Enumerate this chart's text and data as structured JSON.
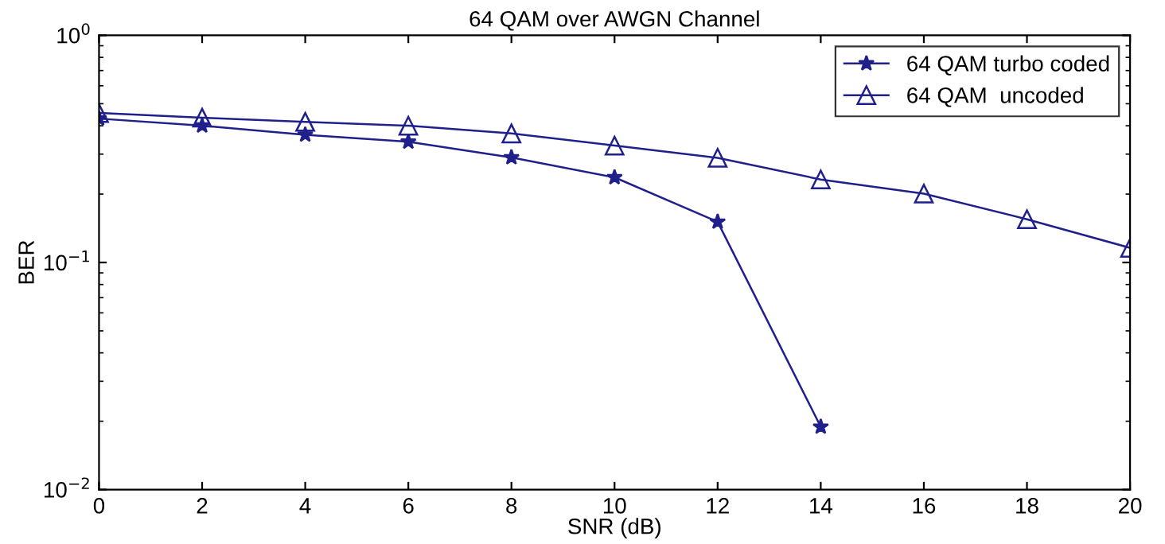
{
  "chart_data": {
    "type": "line",
    "title": "64 QAM over AWGN Channel",
    "xlabel": "SNR (dB)",
    "ylabel": "BER",
    "log": "y",
    "legend": "top right",
    "grid": false,
    "line_style": "solid",
    "xlim": [
      0,
      20
    ],
    "xticks": [
      0,
      2,
      4,
      6,
      8,
      10,
      12,
      14,
      16,
      18,
      20
    ],
    "ylim": [
      0.01,
      1
    ],
    "yticks": [
      {
        "value": 0.01,
        "label": "10$^{−2}$"
      },
      {
        "value": 0.1,
        "label": "10$^{−1}$"
      },
      {
        "value": 1,
        "label": "10$^{0}$"
      }
    ],
    "series": [
      {
        "name": "64 QAM turbo coded",
        "color": "#20208c",
        "marker": "star",
        "x": [
          0,
          2,
          4,
          6,
          8,
          10,
          12,
          14
        ],
        "values": [
          0.43,
          0.4,
          0.365,
          0.34,
          0.29,
          0.237,
          0.151,
          0.0189
        ]
      },
      {
        "name": "64 QAM  uncoded",
        "color": "#20208c",
        "marker": "triangle",
        "x": [
          0,
          2,
          4,
          6,
          8,
          10,
          12,
          14,
          16,
          18,
          20
        ],
        "values": [
          0.455,
          0.434,
          0.416,
          0.4,
          0.37,
          0.327,
          0.289,
          0.232,
          0.201,
          0.155,
          0.116
        ]
      }
    ]
  }
}
